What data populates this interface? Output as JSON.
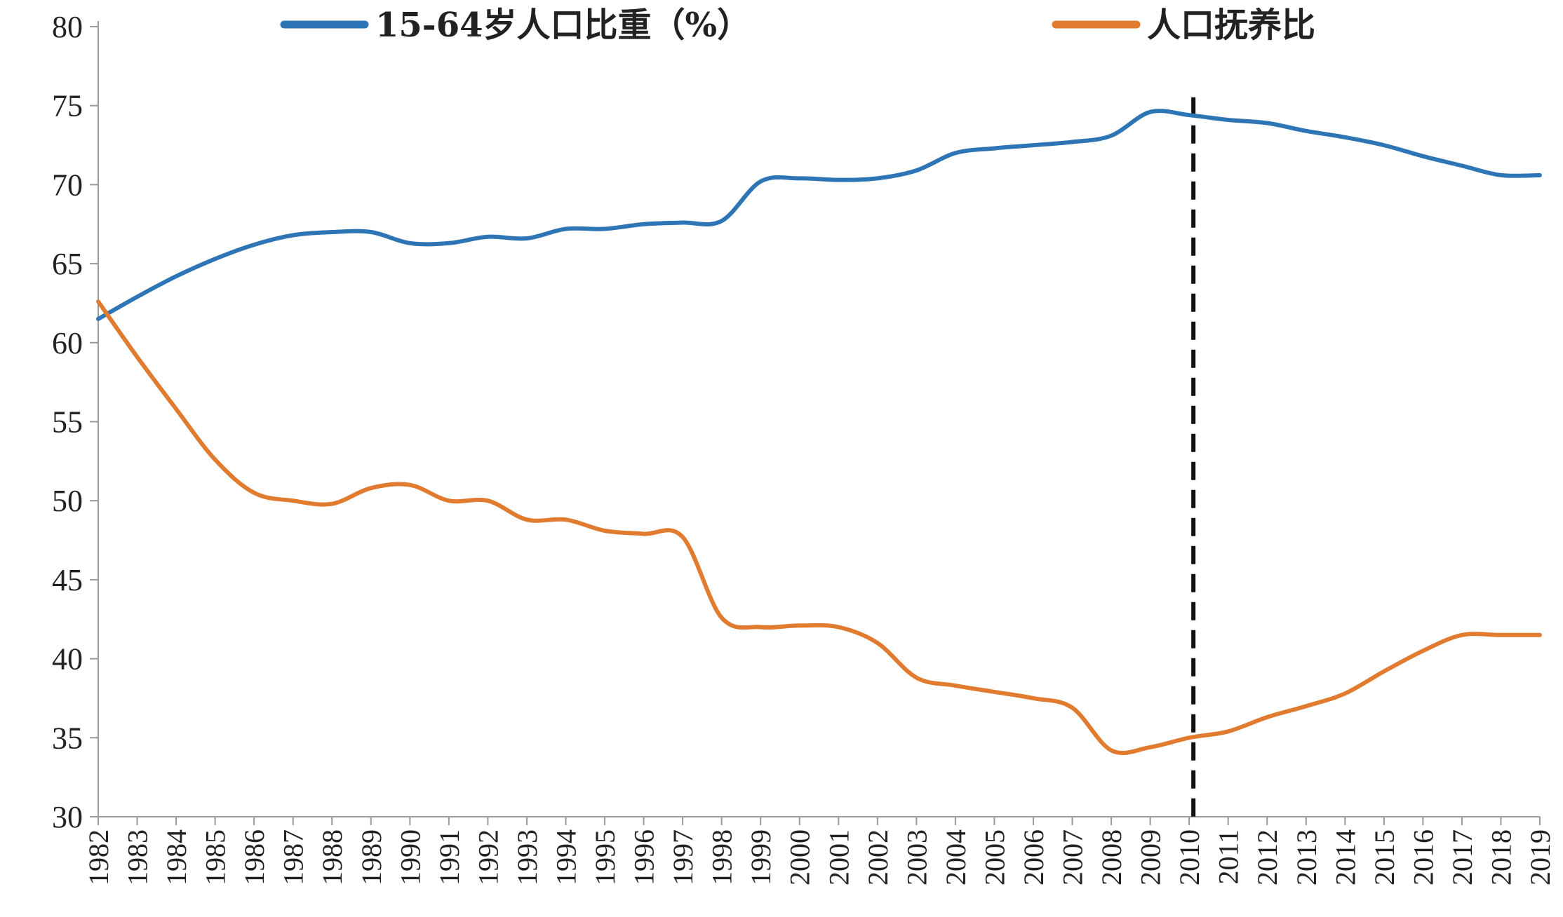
{
  "chart_data": {
    "type": "line",
    "x": [
      "1982",
      "1983",
      "1984",
      "1985",
      "1986",
      "1987",
      "1988",
      "1989",
      "1990",
      "1991",
      "1992",
      "1993",
      "1994",
      "1995",
      "1996",
      "1997",
      "1998",
      "1999",
      "2000",
      "2001",
      "2002",
      "2003",
      "2004",
      "2005",
      "2006",
      "2007",
      "2008",
      "2009",
      "2010",
      "2011",
      "2012",
      "2013",
      "2014",
      "2015",
      "2016",
      "2017",
      "2018",
      "2019"
    ],
    "series": [
      {
        "name": "15-64岁人口比重（%）",
        "color": "#2e75b6",
        "values": [
          61.5,
          62.9,
          64.2,
          65.3,
          66.2,
          66.8,
          67.0,
          67.0,
          66.3,
          66.3,
          66.7,
          66.6,
          67.2,
          67.2,
          67.5,
          67.6,
          67.7,
          70.2,
          70.4,
          70.3,
          70.4,
          70.9,
          72.0,
          72.3,
          72.5,
          72.7,
          73.1,
          74.6,
          74.4,
          74.1,
          73.9,
          73.4,
          73.0,
          72.5,
          71.8,
          71.2,
          70.6,
          70.6
        ]
      },
      {
        "name": "人口抚养比",
        "color": "#e07b30",
        "values": [
          62.6,
          59.1,
          55.8,
          52.6,
          50.5,
          50.0,
          49.8,
          50.8,
          51.0,
          50.0,
          50.0,
          48.8,
          48.8,
          48.1,
          47.9,
          47.7,
          42.6,
          42.0,
          42.1,
          42.0,
          41.0,
          38.8,
          38.3,
          37.9,
          37.5,
          36.9,
          34.2,
          34.4,
          35.0,
          35.4,
          36.3,
          37.0,
          37.8,
          39.2,
          40.5,
          41.5,
          41.5,
          41.5
        ]
      }
    ],
    "y_ticks": [
      "30",
      "35",
      "40",
      "45",
      "50",
      "55",
      "60",
      "65",
      "70",
      "75",
      "80"
    ],
    "ylim": [
      30,
      80
    ],
    "grid": false,
    "legend_position": "top",
    "marker": {
      "x": "2010",
      "style": "dashed",
      "color": "#111111"
    }
  }
}
